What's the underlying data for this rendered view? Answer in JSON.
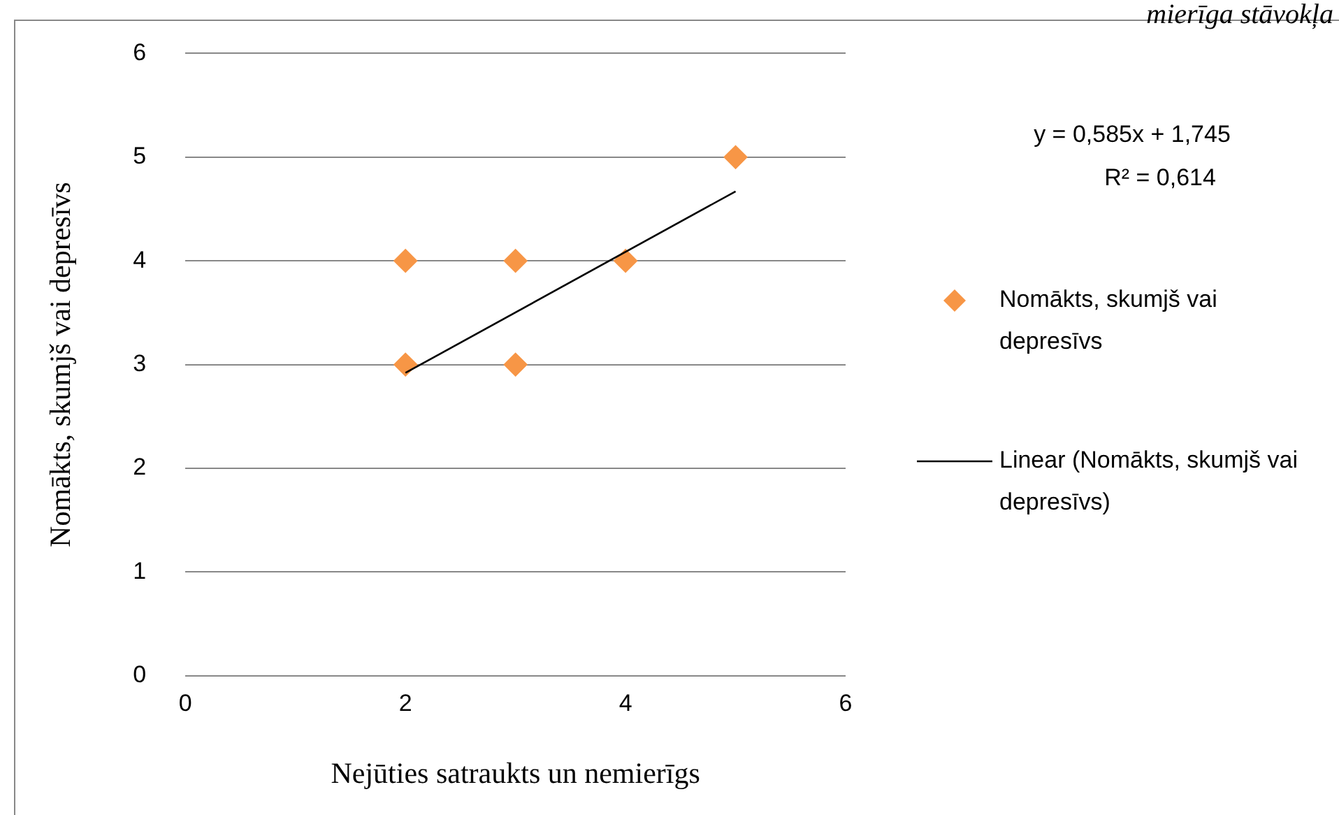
{
  "chart_data": {
    "type": "scatter",
    "xlabel": "Nejūties satraukts un nemierīgs",
    "ylabel": "Nomākts, skumjš vai depresīvs",
    "annotations": [
      "y = 0,585x + 1,745",
      "R² = 0,614",
      "mierīga stāvokļa"
    ],
    "series": [
      {
        "name": "Nomākts, skumjš vai depresīvs",
        "color": "#f79646",
        "marker": "diamond",
        "x": [
          2,
          2,
          3,
          3,
          4,
          5
        ],
        "values": [
          4,
          3,
          4,
          3,
          4,
          5
        ]
      },
      {
        "name": "Linear (Nomākts, skumjš vai depresīvs)",
        "color": "#000000",
        "type": "line",
        "marker": "none",
        "x": [
          2,
          5
        ],
        "values": [
          2.92,
          4.67
        ]
      }
    ],
    "xlim": [
      0,
      6
    ],
    "xticks": [
      0,
      2,
      4,
      6
    ],
    "ylim": [
      0,
      6
    ],
    "yticks": [
      0,
      1,
      2,
      3,
      4,
      5,
      6
    ],
    "grid": "y",
    "legend": "right"
  }
}
